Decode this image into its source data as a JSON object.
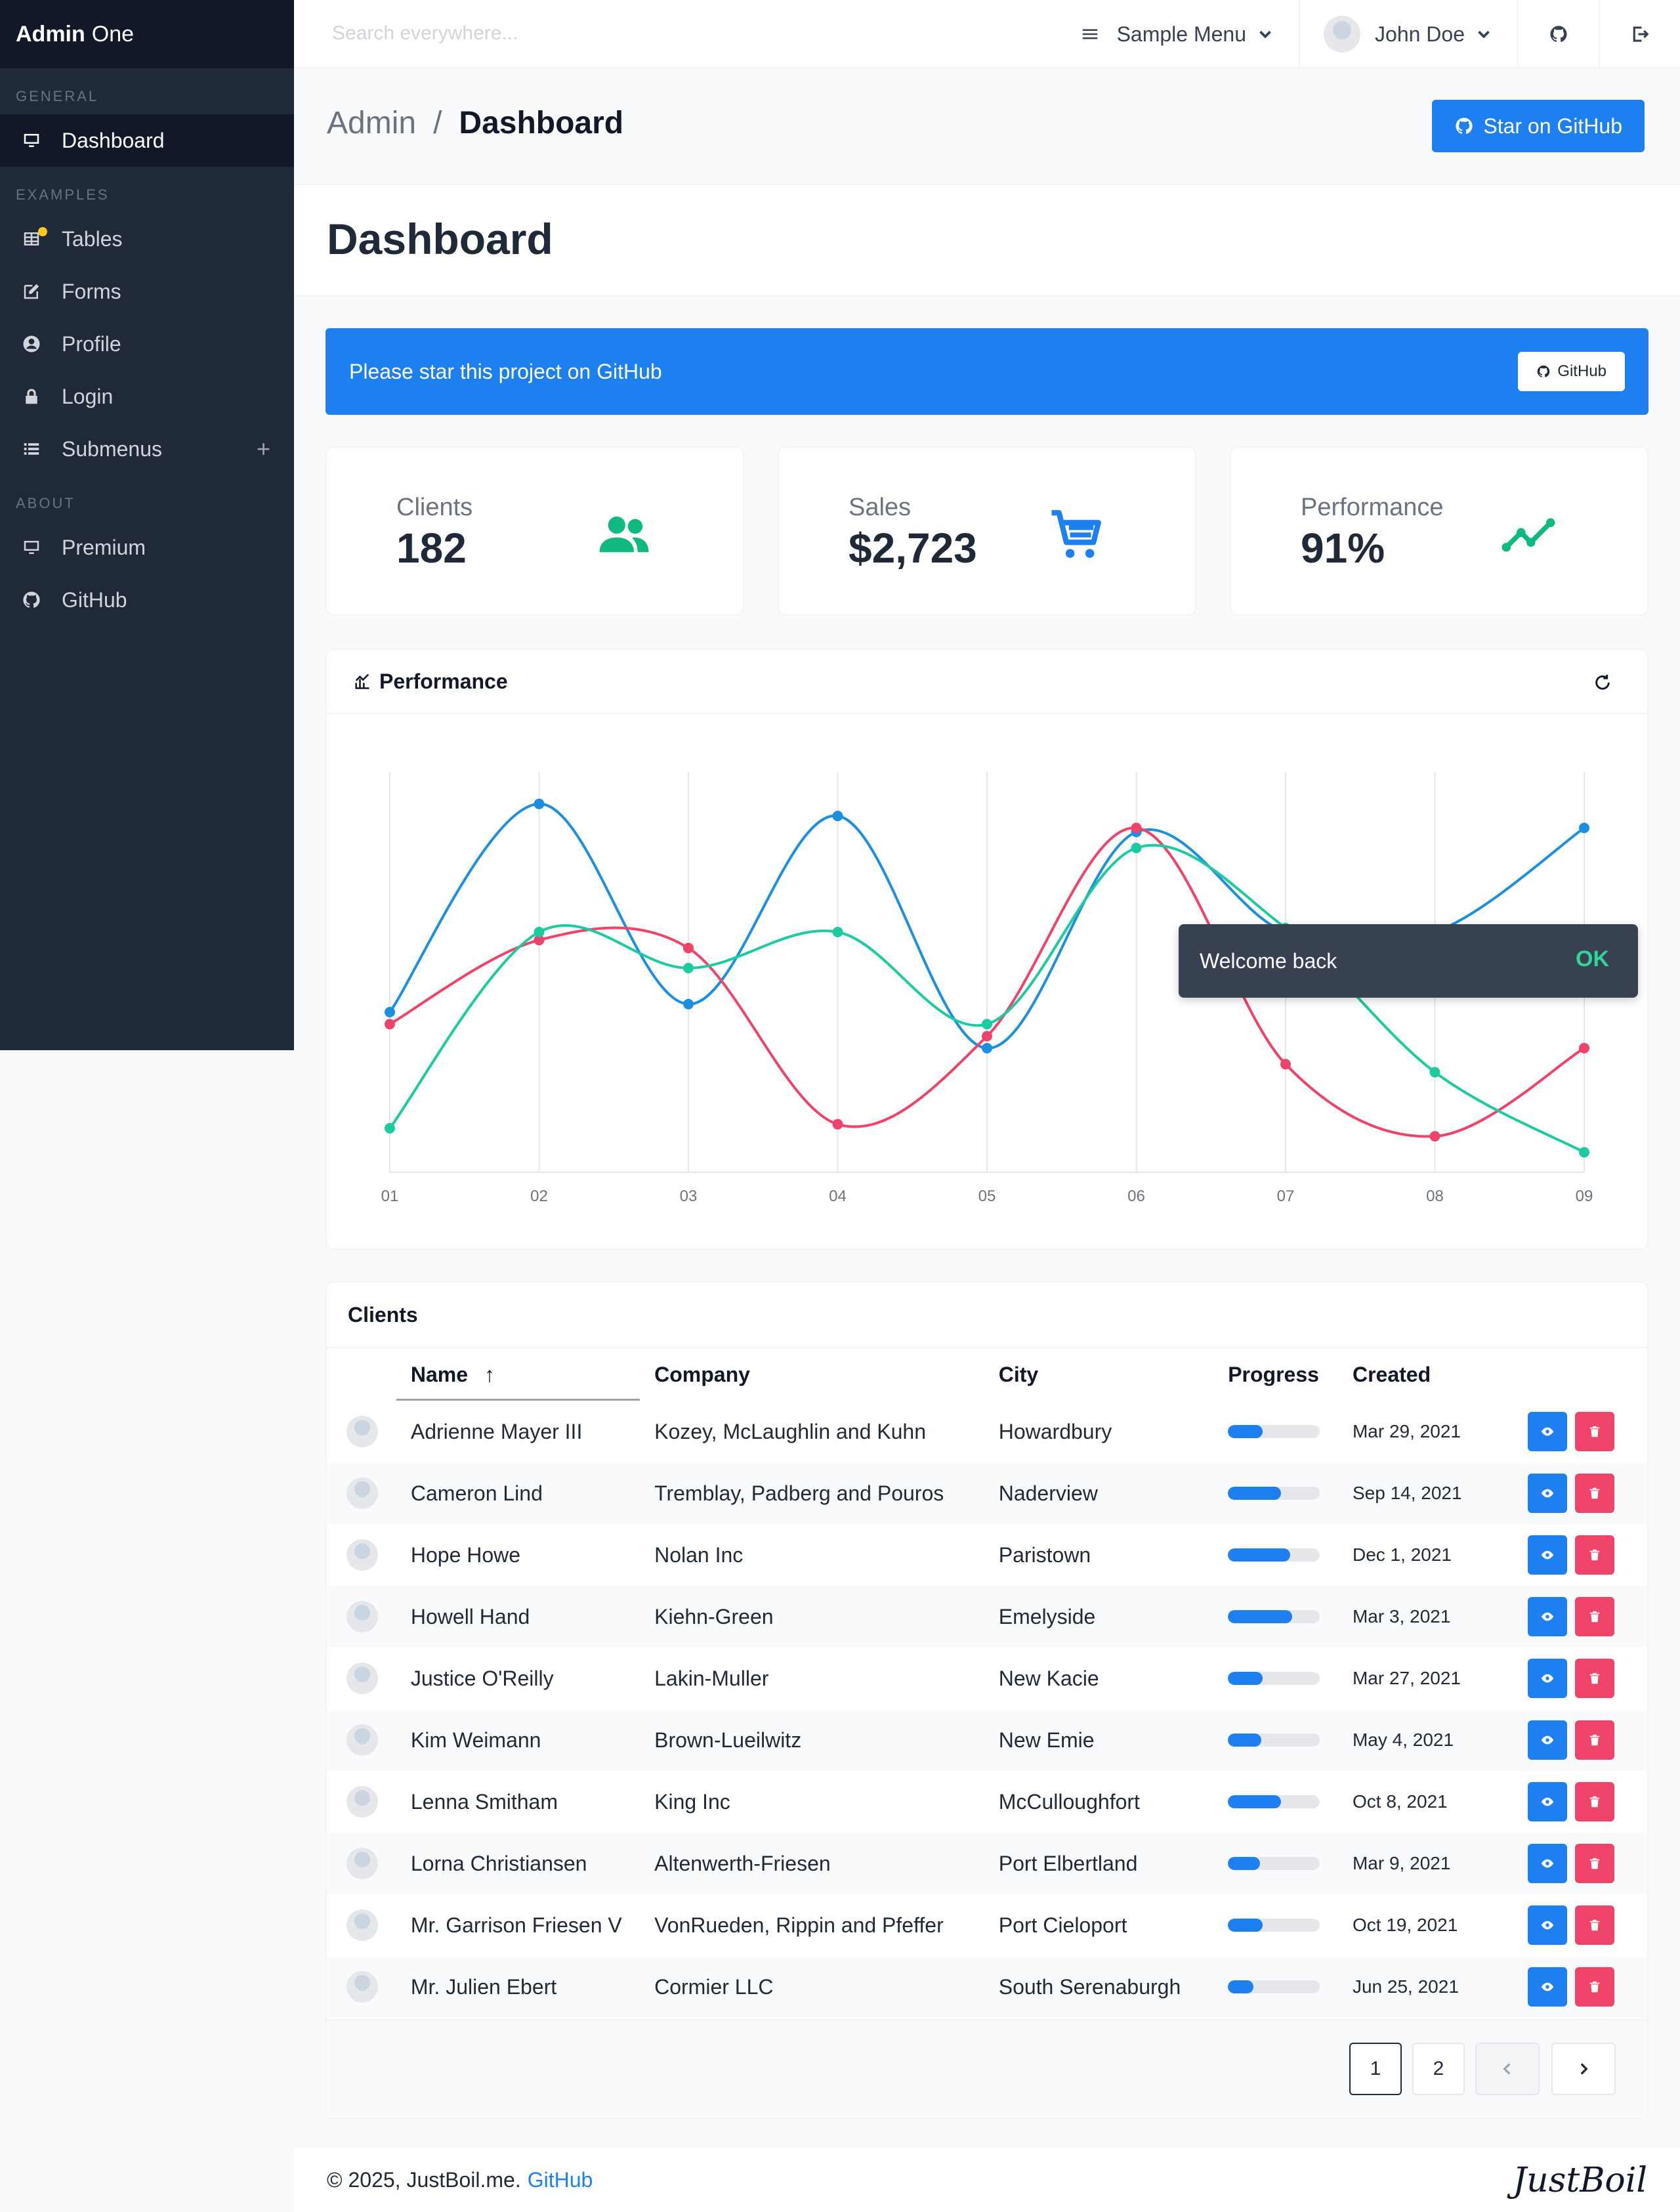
{
  "brand": {
    "bold": "Admin",
    "rest": "One"
  },
  "sidebar": {
    "sections": [
      {
        "label": "GENERAL",
        "items": [
          {
            "label": "Dashboard",
            "icon": "monitor-icon",
            "active": true
          }
        ]
      },
      {
        "label": "EXAMPLES",
        "items": [
          {
            "label": "Tables",
            "icon": "table-icon"
          },
          {
            "label": "Forms",
            "icon": "form-icon"
          },
          {
            "label": "Profile",
            "icon": "profile-icon"
          },
          {
            "label": "Login",
            "icon": "lock-icon"
          },
          {
            "label": "Submenus",
            "icon": "list-icon"
          }
        ]
      },
      {
        "label": "ABOUT",
        "items": [
          {
            "label": "Premium",
            "icon": "monitor-icon"
          },
          {
            "label": "GitHub",
            "icon": "github-icon"
          }
        ]
      }
    ]
  },
  "topnav": {
    "search_placeholder": "Search everywhere...",
    "menu_label": "Sample Menu",
    "user_name": "John Doe"
  },
  "titlebar": {
    "crumb_root": "Admin",
    "crumb_sep": "/",
    "crumb_current": "Dashboard",
    "star_button": "Star on GitHub"
  },
  "hero": {
    "title": "Dashboard"
  },
  "notice": {
    "text": "Please star this project on GitHub",
    "button": "GitHub"
  },
  "stats": [
    {
      "label": "Clients",
      "value": "182",
      "icon": "users-icon",
      "color": "#10b981"
    },
    {
      "label": "Sales",
      "value": "$2,723",
      "icon": "cart-icon",
      "color": "#1e80f0"
    },
    {
      "label": "Performance",
      "value": "91%",
      "icon": "trend-icon",
      "color": "#10b981"
    }
  ],
  "chart_card": {
    "title": "Performance"
  },
  "chart_data": {
    "type": "line",
    "categories": [
      "01",
      "02",
      "03",
      "04",
      "05",
      "06",
      "07",
      "08",
      "09"
    ],
    "ylim": [
      0,
      100
    ],
    "grid": true,
    "series": [
      {
        "color": "#1d8fe0",
        "values": [
          40,
          92,
          42,
          89,
          31,
          85,
          60,
          60,
          86
        ]
      },
      {
        "color": "#f0436a",
        "values": [
          37,
          58,
          56,
          12,
          34,
          86,
          27,
          9,
          31
        ]
      },
      {
        "color": "#1ccba0",
        "values": [
          11,
          60,
          51,
          60,
          37,
          81,
          61,
          25,
          5
        ]
      }
    ]
  },
  "toast": {
    "text": "Welcome back",
    "action": "OK"
  },
  "clients": {
    "title": "Clients",
    "columns": [
      "Name",
      "Company",
      "City",
      "Progress",
      "Created"
    ],
    "sort_indicator": "↑",
    "rows": [
      {
        "name": "Adrienne Mayer III",
        "company": "Kozey, McLaughlin and Kuhn",
        "city": "Howardbury",
        "progress": 0.38,
        "created": "Mar 29, 2021"
      },
      {
        "name": "Cameron Lind",
        "company": "Tremblay, Padberg and Pouros",
        "city": "Naderview",
        "progress": 0.58,
        "created": "Sep 14, 2021"
      },
      {
        "name": "Hope Howe",
        "company": "Nolan Inc",
        "city": "Paristown",
        "progress": 0.68,
        "created": "Dec 1, 2021"
      },
      {
        "name": "Howell Hand",
        "company": "Kiehn-Green",
        "city": "Emelyside",
        "progress": 0.7,
        "created": "Mar 3, 2021"
      },
      {
        "name": "Justice O'Reilly",
        "company": "Lakin-Muller",
        "city": "New Kacie",
        "progress": 0.38,
        "created": "Mar 27, 2021"
      },
      {
        "name": "Kim Weimann",
        "company": "Brown-Lueilwitz",
        "city": "New Emie",
        "progress": 0.36,
        "created": "May 4, 2021"
      },
      {
        "name": "Lenna Smitham",
        "company": "King Inc",
        "city": "McCulloughfort",
        "progress": 0.58,
        "created": "Oct 8, 2021"
      },
      {
        "name": "Lorna Christiansen",
        "company": "Altenwerth-Friesen",
        "city": "Port Elbertland",
        "progress": 0.35,
        "created": "Mar 9, 2021"
      },
      {
        "name": "Mr. Garrison Friesen V",
        "company": "VonRueden, Rippin and Pfeffer",
        "city": "Port Cieloport",
        "progress": 0.38,
        "created": "Oct 19, 2021"
      },
      {
        "name": "Mr. Julien Ebert",
        "company": "Cormier LLC",
        "city": "South Serenaburgh",
        "progress": 0.28,
        "created": "Jun 25, 2021"
      }
    ],
    "pages": [
      "1",
      "2"
    ]
  },
  "footer": {
    "copy": "© 2025, JustBoil.me.",
    "link": "GitHub",
    "logo": "JustBoil"
  }
}
